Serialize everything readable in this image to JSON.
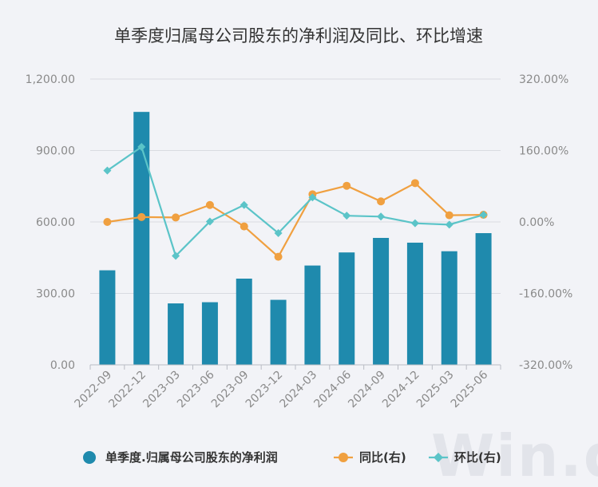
{
  "chart_data": {
    "type": "bar",
    "title": "单季度归属母公司股东的净利润及同比、环比增速",
    "categories": [
      "2022-09",
      "2022-12",
      "2023-03",
      "2023-06",
      "2023-09",
      "2023-12",
      "2024-03",
      "2024-06",
      "2024-09",
      "2024-12",
      "2025-03",
      "2025-06"
    ],
    "left_axis": {
      "ylim": [
        0,
        1200
      ],
      "ticks": [
        "0.00",
        "300.00",
        "600.00",
        "900.00",
        "1,200.00"
      ]
    },
    "right_axis": {
      "ylim": [
        -320,
        320
      ],
      "ticks": [
        "-320.00%",
        "-160.00%",
        "0.00%",
        "160.00%",
        "320.00%"
      ]
    },
    "series": [
      {
        "name": "单季度.归属母公司股东的净利润",
        "type": "bar",
        "axis": "left",
        "color": "#1f8aad",
        "values": [
          397,
          1062,
          258,
          263,
          362,
          273,
          417,
          472,
          533,
          513,
          477,
          553
        ]
      },
      {
        "name": "同比(右)",
        "type": "line",
        "axis": "right",
        "color": "#f0a040",
        "marker": "circle",
        "values": [
          0,
          11,
          10,
          38,
          -10,
          -78,
          62,
          81,
          46,
          87,
          15,
          16
        ]
      },
      {
        "name": "环比(右)",
        "type": "line",
        "axis": "right",
        "color": "#5bc4c8",
        "marker": "diamond",
        "values": [
          115,
          168,
          -76,
          1,
          38,
          -25,
          55,
          14,
          12,
          -3,
          -6,
          16
        ]
      }
    ],
    "legend": "bottom",
    "grid": true
  },
  "watermark": "Win.d"
}
